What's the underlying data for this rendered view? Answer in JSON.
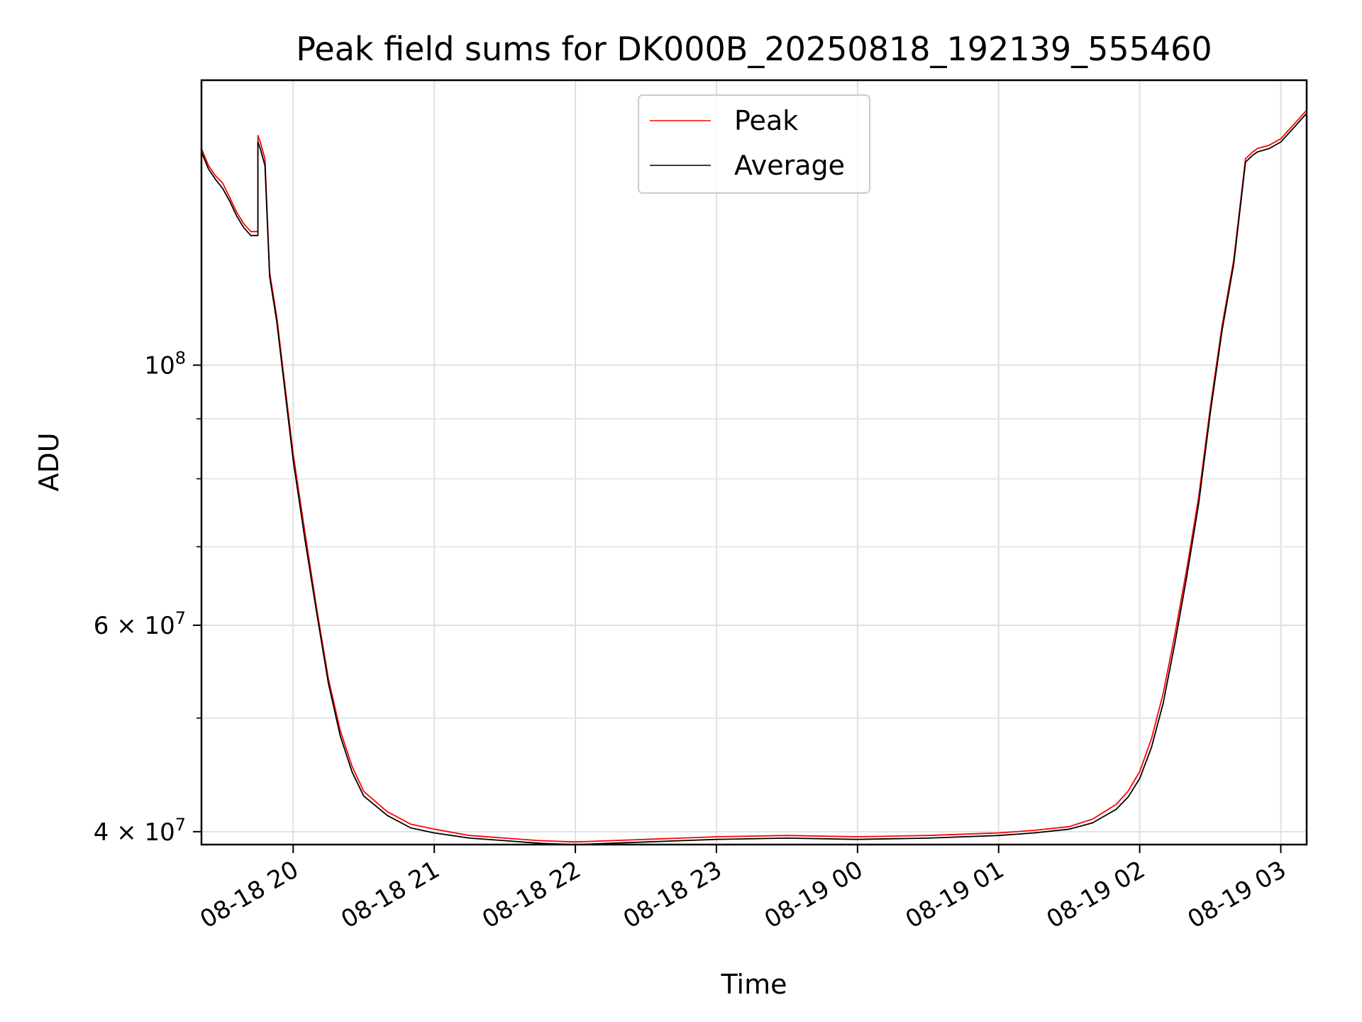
{
  "chart_data": {
    "type": "line",
    "title": "Peak field sums for DK000B_20250818_192139_555460",
    "xlabel": "Time",
    "ylabel": "ADU",
    "yscale": "log",
    "grid": true,
    "legend_position": "top-center",
    "x_range": [
      "2025-08-18 19:21",
      "2025-08-19 03:11"
    ],
    "y_range": [
      39000000,
      175000000
    ],
    "x_ticks": [
      {
        "t": "2025-08-18 20:00",
        "label": "08-18 20"
      },
      {
        "t": "2025-08-18 21:00",
        "label": "08-18 21"
      },
      {
        "t": "2025-08-18 22:00",
        "label": "08-18 22"
      },
      {
        "t": "2025-08-18 23:00",
        "label": "08-18 23"
      },
      {
        "t": "2025-08-19 00:00",
        "label": "08-19 00"
      },
      {
        "t": "2025-08-19 01:00",
        "label": "08-19 01"
      },
      {
        "t": "2025-08-19 02:00",
        "label": "08-19 02"
      },
      {
        "t": "2025-08-19 03:00",
        "label": "08-19 03"
      }
    ],
    "y_ticks_major": [
      {
        "v": 40000000,
        "label": "4 × 10^7",
        "mant": "4",
        "exp": "7"
      },
      {
        "v": 60000000,
        "label": "6 × 10^7",
        "mant": "6",
        "exp": "7"
      },
      {
        "v": 100000000,
        "label": "10^8",
        "mant": "",
        "exp": "8"
      }
    ],
    "y_ticks_minor": [
      50000000,
      70000000,
      80000000,
      90000000
    ],
    "series": [
      {
        "name": "Peak",
        "color": "#ff0000",
        "x": [
          "2025-08-18 19:21",
          "2025-08-18 19:24",
          "2025-08-18 19:27",
          "2025-08-18 19:30",
          "2025-08-18 19:33",
          "2025-08-18 19:36",
          "2025-08-18 19:39",
          "2025-08-18 19:42",
          "2025-08-18 19:45",
          "2025-08-18 19:45",
          "2025-08-18 19:46",
          "2025-08-18 19:48",
          "2025-08-18 19:50",
          "2025-08-18 19:53",
          "2025-08-18 19:56",
          "2025-08-18 20:00",
          "2025-08-18 20:05",
          "2025-08-18 20:10",
          "2025-08-18 20:15",
          "2025-08-18 20:20",
          "2025-08-18 20:25",
          "2025-08-18 20:30",
          "2025-08-18 20:40",
          "2025-08-18 20:50",
          "2025-08-18 21:00",
          "2025-08-18 21:15",
          "2025-08-18 21:30",
          "2025-08-18 21:45",
          "2025-08-18 22:00",
          "2025-08-18 22:15",
          "2025-08-18 22:30",
          "2025-08-18 22:45",
          "2025-08-18 23:00",
          "2025-08-18 23:30",
          "2025-08-19 00:00",
          "2025-08-19 00:30",
          "2025-08-19 01:00",
          "2025-08-19 01:15",
          "2025-08-19 01:30",
          "2025-08-19 01:40",
          "2025-08-19 01:50",
          "2025-08-19 01:55",
          "2025-08-19 02:00",
          "2025-08-19 02:05",
          "2025-08-19 02:10",
          "2025-08-19 02:15",
          "2025-08-19 02:20",
          "2025-08-19 02:25",
          "2025-08-19 02:30",
          "2025-08-19 02:35",
          "2025-08-19 02:40",
          "2025-08-19 02:45",
          "2025-08-19 02:48",
          "2025-08-19 02:50",
          "2025-08-19 02:55",
          "2025-08-19 03:00",
          "2025-08-19 03:05",
          "2025-08-19 03:11"
        ],
        "y": [
          153000000,
          148000000,
          145000000,
          143000000,
          139000000,
          135000000,
          132000000,
          130000000,
          130000000,
          157000000,
          155000000,
          150000000,
          120000000,
          110000000,
          98000000,
          84000000,
          72000000,
          62000000,
          54000000,
          48800000,
          45500000,
          43300000,
          41600000,
          40600000,
          40200000,
          39700000,
          39500000,
          39300000,
          39200000,
          39300000,
          39400000,
          39500000,
          39600000,
          39700000,
          39600000,
          39700000,
          39900000,
          40100000,
          40400000,
          41000000,
          42200000,
          43300000,
          45000000,
          48000000,
          52500000,
          59000000,
          67000000,
          77000000,
          92000000,
          108000000,
          123000000,
          150000000,
          152000000,
          153000000,
          154000000,
          156000000,
          160000000,
          165000000
        ]
      },
      {
        "name": "Average",
        "color": "#000000",
        "x": [
          "2025-08-18 19:21",
          "2025-08-18 19:24",
          "2025-08-18 19:27",
          "2025-08-18 19:30",
          "2025-08-18 19:33",
          "2025-08-18 19:36",
          "2025-08-18 19:39",
          "2025-08-18 19:42",
          "2025-08-18 19:45",
          "2025-08-18 19:45",
          "2025-08-18 19:46",
          "2025-08-18 19:48",
          "2025-08-18 19:50",
          "2025-08-18 19:53",
          "2025-08-18 19:56",
          "2025-08-18 20:00",
          "2025-08-18 20:05",
          "2025-08-18 20:10",
          "2025-08-18 20:15",
          "2025-08-18 20:20",
          "2025-08-18 20:25",
          "2025-08-18 20:30",
          "2025-08-18 20:40",
          "2025-08-18 20:50",
          "2025-08-18 21:00",
          "2025-08-18 21:15",
          "2025-08-18 21:30",
          "2025-08-18 21:45",
          "2025-08-18 22:00",
          "2025-08-18 22:15",
          "2025-08-18 22:30",
          "2025-08-18 22:45",
          "2025-08-18 23:00",
          "2025-08-18 23:30",
          "2025-08-19 00:00",
          "2025-08-19 00:30",
          "2025-08-19 01:00",
          "2025-08-19 01:15",
          "2025-08-19 01:30",
          "2025-08-19 01:40",
          "2025-08-19 01:50",
          "2025-08-19 01:55",
          "2025-08-19 02:00",
          "2025-08-19 02:05",
          "2025-08-19 02:10",
          "2025-08-19 02:15",
          "2025-08-19 02:20",
          "2025-08-19 02:25",
          "2025-08-19 02:30",
          "2025-08-19 02:35",
          "2025-08-19 02:40",
          "2025-08-19 02:45",
          "2025-08-19 02:48",
          "2025-08-19 02:50",
          "2025-08-19 02:55",
          "2025-08-19 03:00",
          "2025-08-19 03:05",
          "2025-08-19 03:11"
        ],
        "y": [
          152000000,
          147000000,
          144000000,
          141500000,
          138000000,
          134000000,
          131000000,
          129000000,
          129000000,
          155000000,
          153000000,
          148000000,
          119000000,
          109000000,
          97000000,
          83000000,
          71000000,
          61500000,
          53500000,
          48300000,
          45000000,
          42900000,
          41300000,
          40300000,
          39900000,
          39500000,
          39300000,
          39100000,
          39000000,
          39100000,
          39200000,
          39300000,
          39400000,
          39500000,
          39400000,
          39500000,
          39700000,
          39900000,
          40200000,
          40700000,
          41800000,
          42800000,
          44400000,
          47200000,
          51500000,
          58000000,
          66000000,
          76000000,
          91000000,
          107000000,
          122000000,
          149000000,
          151000000,
          152000000,
          153000000,
          155000000,
          159000000,
          164000000
        ]
      }
    ]
  }
}
